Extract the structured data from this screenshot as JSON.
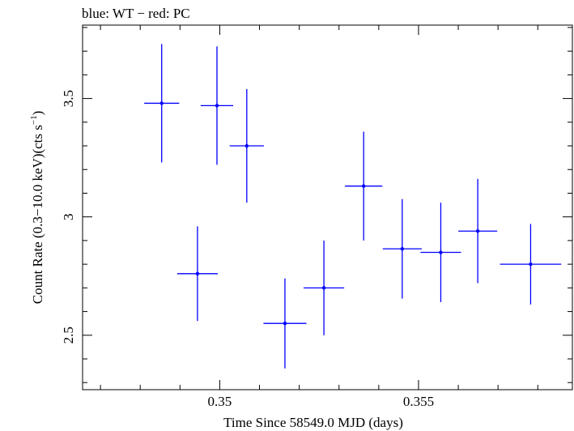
{
  "chart_data": {
    "type": "scatter",
    "title": "blue: WT − red: PC",
    "xlabel": "Time Since 58549.0 MJD (days)",
    "ylabel_main": "Count Rate (0.3−10.0 keV)(cts s",
    "ylabel_sup": "−1",
    "ylabel_close": ")",
    "xlim": [
      0.34655,
      0.35887
    ],
    "ylim": [
      2.27,
      3.81
    ],
    "xticks_major": [
      0.35,
      0.355
    ],
    "xtick_labels": [
      "0.35",
      "0.355"
    ],
    "xticks_minor": [
      0.347,
      0.348,
      0.349,
      0.351,
      0.352,
      0.353,
      0.354,
      0.356,
      0.357,
      0.358
    ],
    "yticks_major": [
      2.5,
      3,
      3.5
    ],
    "ytick_labels": [
      "2.5",
      "3",
      "3.5"
    ],
    "yticks_minor": [
      2.3,
      2.4,
      2.6,
      2.7,
      2.8,
      2.9,
      3.1,
      3.2,
      3.3,
      3.4,
      3.6,
      3.7,
      3.8
    ],
    "grid": false,
    "series": [
      {
        "color": "#0000ff",
        "points": [
          {
            "x": 0.34854,
            "xerr": 0.00044,
            "y": 3.48,
            "yerr_lo": 0.25,
            "yerr_hi": 0.25
          },
          {
            "x": 0.34944,
            "xerr": 0.00051,
            "y": 2.76,
            "yerr_lo": 0.2,
            "yerr_hi": 0.2
          },
          {
            "x": 0.34993,
            "xerr": 0.00041,
            "y": 3.47,
            "yerr_lo": 0.25,
            "yerr_hi": 0.25
          },
          {
            "x": 0.35068,
            "xerr": 0.00043,
            "y": 3.3,
            "yerr_lo": 0.24,
            "yerr_hi": 0.24
          },
          {
            "x": 0.35164,
            "xerr": 0.00054,
            "y": 2.55,
            "yerr_lo": 0.19,
            "yerr_hi": 0.19
          },
          {
            "x": 0.35262,
            "xerr": 0.00051,
            "y": 2.7,
            "yerr_lo": 0.2,
            "yerr_hi": 0.2
          },
          {
            "x": 0.35362,
            "xerr": 0.00047,
            "y": 3.13,
            "yerr_lo": 0.23,
            "yerr_hi": 0.23
          },
          {
            "x": 0.35459,
            "xerr": 0.00049,
            "y": 2.865,
            "yerr_lo": 0.21,
            "yerr_hi": 0.21
          },
          {
            "x": 0.35556,
            "xerr": 0.00051,
            "y": 2.85,
            "yerr_lo": 0.21,
            "yerr_hi": 0.21
          },
          {
            "x": 0.35649,
            "xerr": 0.00049,
            "y": 2.94,
            "yerr_lo": 0.22,
            "yerr_hi": 0.22
          },
          {
            "x": 0.35782,
            "xerr": 0.00077,
            "y": 2.8,
            "yerr_lo": 0.17,
            "yerr_hi": 0.17
          }
        ]
      }
    ]
  }
}
